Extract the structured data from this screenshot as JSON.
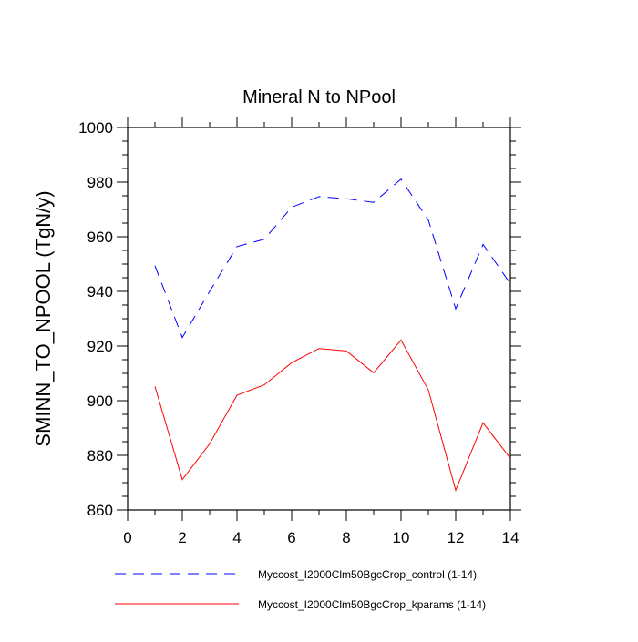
{
  "chart_data": {
    "type": "line",
    "title": "Mineral N to NPool",
    "xlabel": "",
    "ylabel": "SMINN_TO_NPOOL  (TgN/y)",
    "xlim": [
      0,
      14
    ],
    "ylim": [
      860,
      1000
    ],
    "xticks": [
      0,
      2,
      4,
      6,
      8,
      10,
      12,
      14
    ],
    "yticks": [
      860,
      880,
      900,
      920,
      940,
      960,
      980,
      1000
    ],
    "grid": false,
    "legend_position": "bottom",
    "x": [
      1,
      2,
      3,
      4,
      5,
      6,
      7,
      8,
      9,
      10,
      11,
      12,
      13,
      14
    ],
    "series": [
      {
        "name": "Myccost_I2000Clm50BgcCrop_control (1-14)",
        "color": "#0000ff",
        "dash": "dashed",
        "values": [
          949.4,
          923.1,
          940.0,
          956.4,
          959.1,
          970.8,
          974.7,
          973.9,
          972.6,
          981.1,
          966.1,
          933.6,
          957.2,
          942.8
        ]
      },
      {
        "name": "Myccost_I2000Clm50BgcCrop_kparams (1-14)",
        "color": "#ff0000",
        "dash": "solid",
        "values": [
          905.2,
          871.1,
          884.2,
          902.0,
          905.8,
          913.9,
          919.1,
          918.2,
          910.2,
          922.2,
          903.9,
          867.2,
          891.9,
          878.9
        ]
      }
    ]
  }
}
